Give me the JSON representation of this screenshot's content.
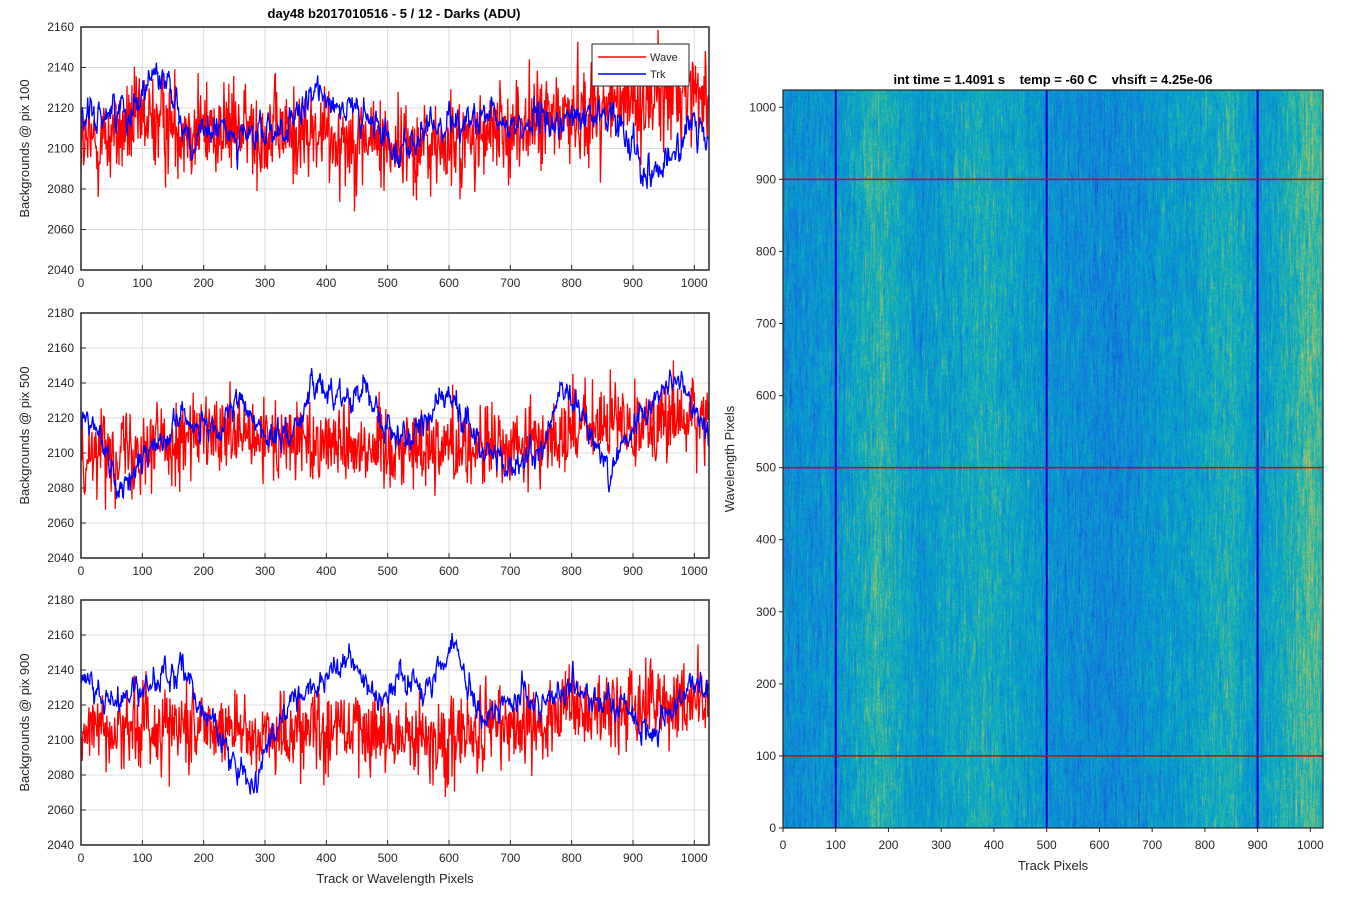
{
  "figure_title": "day48 b2017010516 - 5 / 12 - Darks (ADU)",
  "chart_data": [
    {
      "type": "line",
      "id": "bg100",
      "ylabel": "Backgrounds @ pix 100",
      "xlabel": "",
      "xlim": [
        0,
        1024
      ],
      "ylim": [
        2040,
        2160
      ],
      "xticks": [
        "0",
        "100",
        "200",
        "300",
        "400",
        "500",
        "600",
        "700",
        "800",
        "900",
        "1000"
      ],
      "yticks": [
        "2040",
        "2060",
        "2080",
        "2100",
        "2120",
        "2140",
        "2160"
      ],
      "grid": true,
      "legend": {
        "position": "top-right",
        "entries": [
          "Wave",
          "Trk"
        ]
      },
      "series": [
        {
          "name": "Wave",
          "color": "#ff0000",
          "noise_std": 12,
          "trend": [
            [
              0,
              2100
            ],
            [
              100,
              2113
            ],
            [
              200,
              2110
            ],
            [
              300,
              2108
            ],
            [
              400,
              2106
            ],
            [
              500,
              2103
            ],
            [
              600,
              2100
            ],
            [
              700,
              2110
            ],
            [
              800,
              2117
            ],
            [
              900,
              2123
            ],
            [
              1023,
              2130
            ]
          ]
        },
        {
          "name": "Trk",
          "color": "#0000ff",
          "noise_std": 4,
          "trend": [
            [
              0,
              2112
            ],
            [
              40,
              2118
            ],
            [
              80,
              2120
            ],
            [
              120,
              2138
            ],
            [
              150,
              2130
            ],
            [
              180,
              2100
            ],
            [
              220,
              2110
            ],
            [
              280,
              2105
            ],
            [
              350,
              2112
            ],
            [
              390,
              2130
            ],
            [
              430,
              2120
            ],
            [
              480,
              2110
            ],
            [
              530,
              2100
            ],
            [
              600,
              2115
            ],
            [
              700,
              2112
            ],
            [
              780,
              2113
            ],
            [
              860,
              2117
            ],
            [
              900,
              2105
            ],
            [
              920,
              2090
            ],
            [
              960,
              2093
            ],
            [
              990,
              2110
            ],
            [
              1023,
              2105
            ]
          ]
        }
      ]
    },
    {
      "type": "line",
      "id": "bg500",
      "ylabel": "Backgrounds @ pix 500",
      "xlabel": "",
      "xlim": [
        0,
        1024
      ],
      "ylim": [
        2040,
        2180
      ],
      "xticks": [
        "0",
        "100",
        "200",
        "300",
        "400",
        "500",
        "600",
        "700",
        "800",
        "900",
        "1000"
      ],
      "yticks": [
        "2040",
        "2060",
        "2080",
        "2100",
        "2120",
        "2140",
        "2160",
        "2180"
      ],
      "grid": true,
      "series": [
        {
          "name": "Wave",
          "color": "#ff0000",
          "noise_std": 12,
          "trend": [
            [
              0,
              2100
            ],
            [
              100,
              2105
            ],
            [
              200,
              2110
            ],
            [
              300,
              2106
            ],
            [
              400,
              2108
            ],
            [
              500,
              2103
            ],
            [
              600,
              2105
            ],
            [
              700,
              2102
            ],
            [
              800,
              2113
            ],
            [
              900,
              2118
            ],
            [
              1023,
              2120
            ]
          ]
        },
        {
          "name": "Trk",
          "color": "#0000ff",
          "noise_std": 4,
          "trend": [
            [
              0,
              2118
            ],
            [
              30,
              2115
            ],
            [
              60,
              2077
            ],
            [
              90,
              2090
            ],
            [
              130,
              2110
            ],
            [
              170,
              2122
            ],
            [
              220,
              2108
            ],
            [
              260,
              2130
            ],
            [
              300,
              2110
            ],
            [
              340,
              2110
            ],
            [
              380,
              2138
            ],
            [
              440,
              2132
            ],
            [
              460,
              2140
            ],
            [
              500,
              2112
            ],
            [
              540,
              2110
            ],
            [
              600,
              2135
            ],
            [
              650,
              2105
            ],
            [
              700,
              2090
            ],
            [
              750,
              2100
            ],
            [
              780,
              2135
            ],
            [
              820,
              2120
            ],
            [
              860,
              2090
            ],
            [
              900,
              2115
            ],
            [
              940,
              2135
            ],
            [
              980,
              2140
            ],
            [
              1000,
              2125
            ],
            [
              1023,
              2110
            ]
          ]
        }
      ]
    },
    {
      "type": "line",
      "id": "bg900",
      "ylabel": "Backgrounds @ pix 900",
      "xlabel": "Track or Wavelength Pixels",
      "xlim": [
        0,
        1024
      ],
      "ylim": [
        2040,
        2180
      ],
      "xticks": [
        "0",
        "100",
        "200",
        "300",
        "400",
        "500",
        "600",
        "700",
        "800",
        "900",
        "1000"
      ],
      "yticks": [
        "2040",
        "2060",
        "2080",
        "2100",
        "2120",
        "2140",
        "2160",
        "2180"
      ],
      "grid": true,
      "series": [
        {
          "name": "Wave",
          "color": "#ff0000",
          "noise_std": 12,
          "trend": [
            [
              0,
              2105
            ],
            [
              100,
              2108
            ],
            [
              200,
              2110
            ],
            [
              300,
              2103
            ],
            [
              400,
              2108
            ],
            [
              500,
              2103
            ],
            [
              600,
              2100
            ],
            [
              700,
              2108
            ],
            [
              800,
              2115
            ],
            [
              900,
              2118
            ],
            [
              1023,
              2122
            ]
          ]
        },
        {
          "name": "Trk",
          "color": "#0000ff",
          "noise_std": 4,
          "trend": [
            [
              0,
              2140
            ],
            [
              40,
              2120
            ],
            [
              80,
              2125
            ],
            [
              130,
              2135
            ],
            [
              170,
              2140
            ],
            [
              210,
              2112
            ],
            [
              250,
              2090
            ],
            [
              280,
              2070
            ],
            [
              310,
              2100
            ],
            [
              340,
              2118
            ],
            [
              380,
              2130
            ],
            [
              440,
              2148
            ],
            [
              480,
              2125
            ],
            [
              520,
              2135
            ],
            [
              560,
              2130
            ],
            [
              610,
              2158
            ],
            [
              640,
              2120
            ],
            [
              660,
              2110
            ],
            [
              700,
              2125
            ],
            [
              750,
              2122
            ],
            [
              800,
              2130
            ],
            [
              850,
              2120
            ],
            [
              900,
              2115
            ],
            [
              930,
              2103
            ],
            [
              960,
              2115
            ],
            [
              1000,
              2135
            ],
            [
              1023,
              2130
            ]
          ]
        }
      ]
    },
    {
      "type": "heatmap",
      "id": "darkimage",
      "title": "int time = 1.4091 s    temp = -60 C    vhsift = 4.25e-06",
      "xlabel": "Track Pixels",
      "ylabel": "Wavelength Pixels",
      "xlim": [
        0,
        1024
      ],
      "ylim": [
        0,
        1024
      ],
      "xticks": [
        "0",
        "100",
        "200",
        "300",
        "400",
        "500",
        "600",
        "700",
        "800",
        "900",
        "1000"
      ],
      "yticks": [
        "0",
        "100",
        "200",
        "300",
        "400",
        "500",
        "600",
        "700",
        "800",
        "900",
        "1000"
      ],
      "colormap": "parula",
      "value_range": [
        2070,
        2150
      ],
      "column_trend": [
        [
          0,
          2100
        ],
        [
          100,
          2104
        ],
        [
          180,
          2118
        ],
        [
          260,
          2104
        ],
        [
          300,
          2108
        ],
        [
          380,
          2114
        ],
        [
          450,
          2108
        ],
        [
          500,
          2103
        ],
        [
          560,
          2100
        ],
        [
          620,
          2098
        ],
        [
          700,
          2104
        ],
        [
          780,
          2108
        ],
        [
          850,
          2116
        ],
        [
          900,
          2104
        ],
        [
          950,
          2114
        ],
        [
          1000,
          2124
        ],
        [
          1023,
          2120
        ]
      ],
      "marker_lines": [
        {
          "orientation": "vertical",
          "at": 100,
          "color": "#0000cc"
        },
        {
          "orientation": "vertical",
          "at": 500,
          "color": "#0000cc"
        },
        {
          "orientation": "vertical",
          "at": 900,
          "color": "#0000cc"
        },
        {
          "orientation": "horizontal",
          "at": 100,
          "color": "#dd0000"
        },
        {
          "orientation": "horizontal",
          "at": 500,
          "color": "#dd0000"
        },
        {
          "orientation": "horizontal",
          "at": 900,
          "color": "#dd0000"
        }
      ]
    }
  ]
}
